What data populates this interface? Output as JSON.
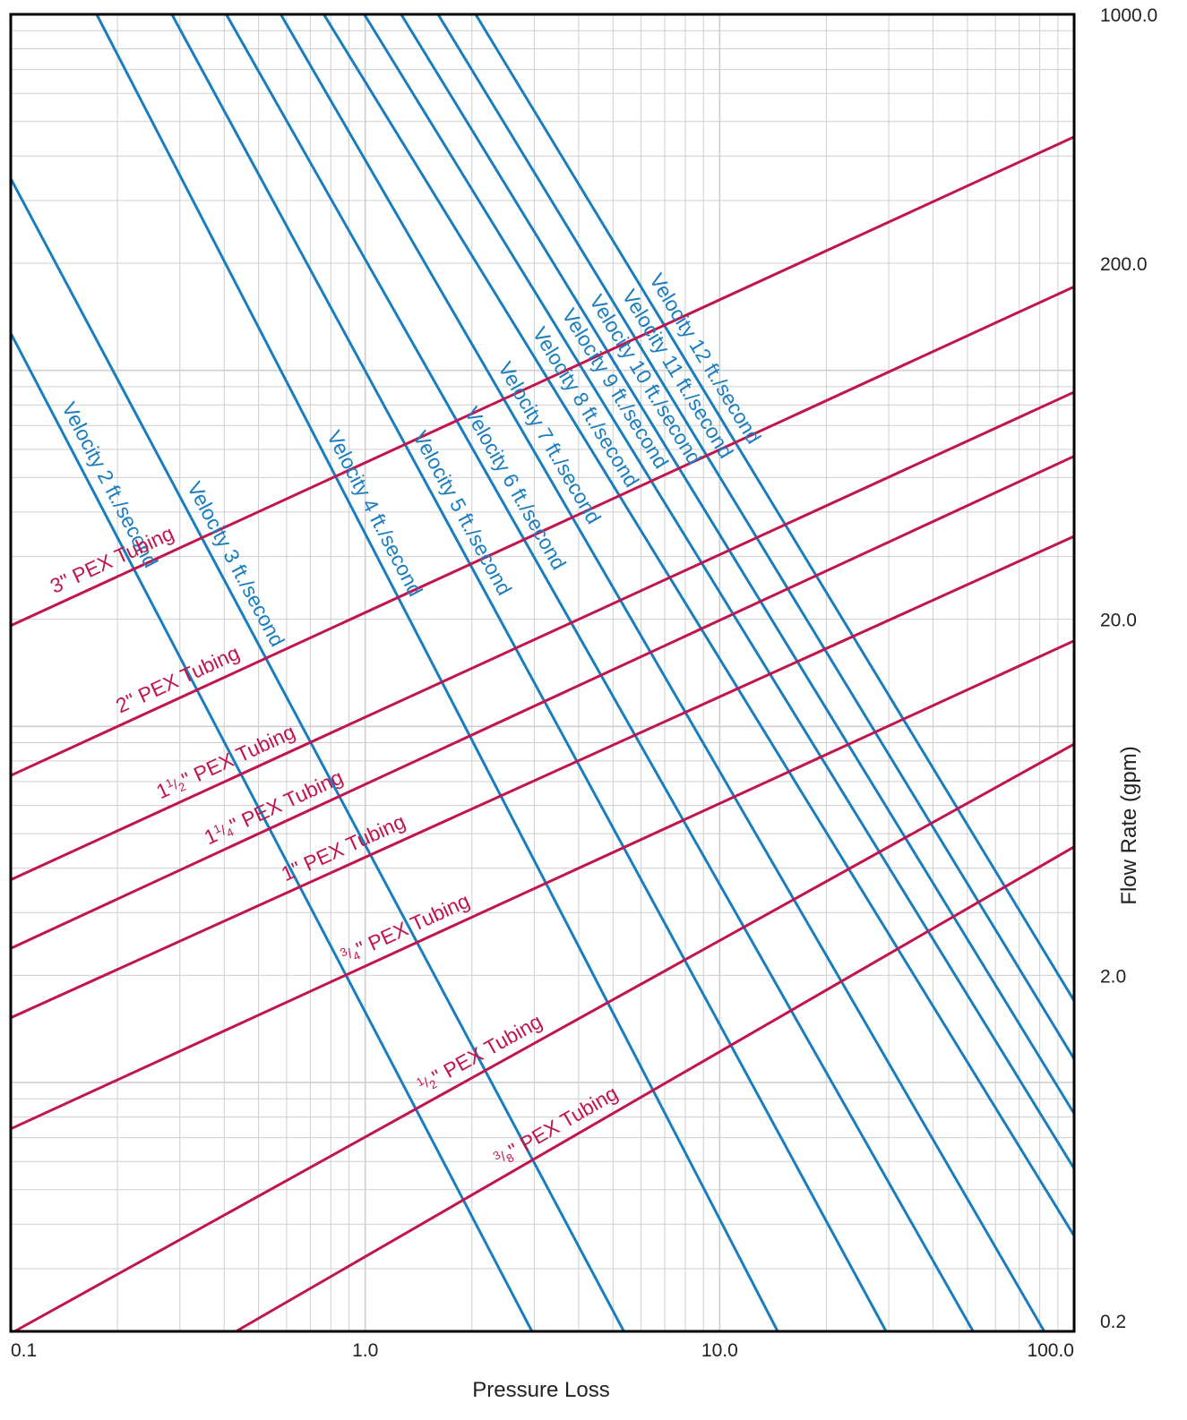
{
  "chart_data": {
    "type": "line",
    "title": "",
    "xlabel": "Pressure Loss",
    "ylabel": "Flow Rate (gpm)",
    "x_scale": "log",
    "y_scale": "log",
    "xlim": [
      0.1,
      100.0
    ],
    "ylim": [
      0.2,
      1000.0
    ],
    "grid": true,
    "x_ticks": [
      {
        "value": 0.1,
        "label": "0.1"
      },
      {
        "value": 1.0,
        "label": "1.0"
      },
      {
        "value": 10.0,
        "label": "10.0"
      },
      {
        "value": 100.0,
        "label": "100.0"
      }
    ],
    "y_ticks": [
      {
        "value": 0.2,
        "label": "0.2"
      },
      {
        "value": 2.0,
        "label": "2.0"
      },
      {
        "value": 20.0,
        "label": "20.0"
      },
      {
        "value": 200.0,
        "label": "200.0"
      },
      {
        "value": 1000.0,
        "label": "1000.0"
      }
    ],
    "colors": {
      "velocity": "#1a7dc0",
      "tubing": "#c1154d",
      "grid": "#cfcfcf",
      "frame": "#000000",
      "text": "#222222"
    },
    "velocity_series": [
      {
        "name": "Velocity 2 ft./second",
        "label": "Velocity 2 ft./second",
        "points": [
          [
            0.1,
            127.2
          ],
          [
            2.954,
            0.2
          ]
        ]
      },
      {
        "name": "Velocity 3 ft./second",
        "label": "Velocity 3 ft./second",
        "points": [
          [
            0.1,
            345.8
          ],
          [
            5.368,
            0.2
          ]
        ]
      },
      {
        "name": "Velocity 4 ft./second",
        "label": "Velocity 4 ft./second",
        "points": [
          [
            0.1747,
            1000.0
          ],
          [
            14.58,
            0.2
          ]
        ]
      },
      {
        "name": "Velocity 5 ft./second",
        "label": "Velocity 5 ft./second",
        "points": [
          [
            0.2848,
            1000.0
          ],
          [
            29.48,
            0.2
          ]
        ]
      },
      {
        "name": "Velocity 6 ft./second",
        "label": "Velocity 6 ft./second",
        "points": [
          [
            0.4055,
            1000.0
          ],
          [
            51.89,
            0.2
          ]
        ]
      },
      {
        "name": "Velocity 7 ft./second",
        "label": "Velocity 7 ft./second",
        "points": [
          [
            0.5778,
            1000.0
          ],
          [
            82.35,
            0.2
          ]
        ]
      },
      {
        "name": "Velocity 8 ft./second",
        "label": "Velocity 8 ft./second",
        "points": [
          [
            0.764,
            1000.0
          ],
          [
            100.0,
            0.371
          ]
        ]
      },
      {
        "name": "Velocity 9 ft./second",
        "label": "Velocity 9 ft./second",
        "points": [
          [
            0.994,
            1000.0
          ],
          [
            100.0,
            0.573
          ]
        ]
      },
      {
        "name": "Velocity 10 ft./second",
        "label": "Velocity 10 ft./second",
        "points": [
          [
            1.263,
            1000.0
          ],
          [
            100.0,
            0.818
          ]
        ]
      },
      {
        "name": "Velocity 11 ft./second",
        "label": "Velocity 11 ft./second",
        "points": [
          [
            1.605,
            1000.0
          ],
          [
            100.0,
            1.165
          ]
        ]
      },
      {
        "name": "Velocity 12 ft./second",
        "label": "Velocity 12 ft./second",
        "points": [
          [
            2.049,
            1000.0
          ],
          [
            100.0,
            1.697
          ]
        ]
      }
    ],
    "tubing_series": [
      {
        "name": "3\" PEX Tubing",
        "label_main": "3\" PEX Tubing",
        "label_prefix": "",
        "label_frac_num": "",
        "label_frac_den": "",
        "label_suffix": "",
        "points": [
          [
            0.1,
            19.19
          ],
          [
            100.0,
            452.8
          ]
        ]
      },
      {
        "name": "2\" PEX Tubing",
        "label_main": "2\" PEX Tubing",
        "label_prefix": "",
        "label_frac_num": "",
        "label_frac_den": "",
        "label_suffix": "",
        "points": [
          [
            0.1,
            7.28
          ],
          [
            100.0,
            171.8
          ]
        ]
      },
      {
        "name": "1½\" PEX Tubing",
        "label_main": "",
        "label_prefix": "1",
        "label_frac_num": "1",
        "label_frac_den": "2",
        "label_suffix": "\" PEX Tubing",
        "points": [
          [
            0.1,
            3.71
          ],
          [
            100.0,
            86.9
          ]
        ]
      },
      {
        "name": "1¼\" PEX Tubing",
        "label_main": "",
        "label_prefix": "1",
        "label_frac_num": "1",
        "label_frac_den": "4",
        "label_suffix": "\" PEX Tubing",
        "points": [
          [
            0.1,
            2.38
          ],
          [
            100.0,
            57.4
          ]
        ]
      },
      {
        "name": "1\" PEX Tubing",
        "label_main": "1\" PEX Tubing",
        "label_prefix": "",
        "label_frac_num": "",
        "label_frac_den": "",
        "label_suffix": "",
        "points": [
          [
            0.1,
            1.52
          ],
          [
            100.0,
            34.2
          ]
        ]
      },
      {
        "name": "¾\" PEX Tubing",
        "label_main": "",
        "label_prefix": "",
        "label_frac_num": "3",
        "label_frac_den": "4",
        "label_suffix": "\" PEX Tubing",
        "points": [
          [
            0.1,
            0.741
          ],
          [
            100.0,
            17.4
          ]
        ]
      },
      {
        "name": "½\" PEX Tubing",
        "label_main": "",
        "label_prefix": "",
        "label_frac_num": "1",
        "label_frac_den": "2",
        "label_suffix": "\" PEX Tubing",
        "points": [
          [
            0.1025,
            0.2
          ],
          [
            100.0,
            8.92
          ]
        ]
      },
      {
        "name": "⅜\" PEX Tubing",
        "label_main": "",
        "label_prefix": "",
        "label_frac_num": "3",
        "label_frac_den": "8",
        "label_suffix": "\" PEX Tubing",
        "points": [
          [
            0.432,
            0.2
          ],
          [
            100.0,
            4.59
          ]
        ]
      }
    ]
  }
}
